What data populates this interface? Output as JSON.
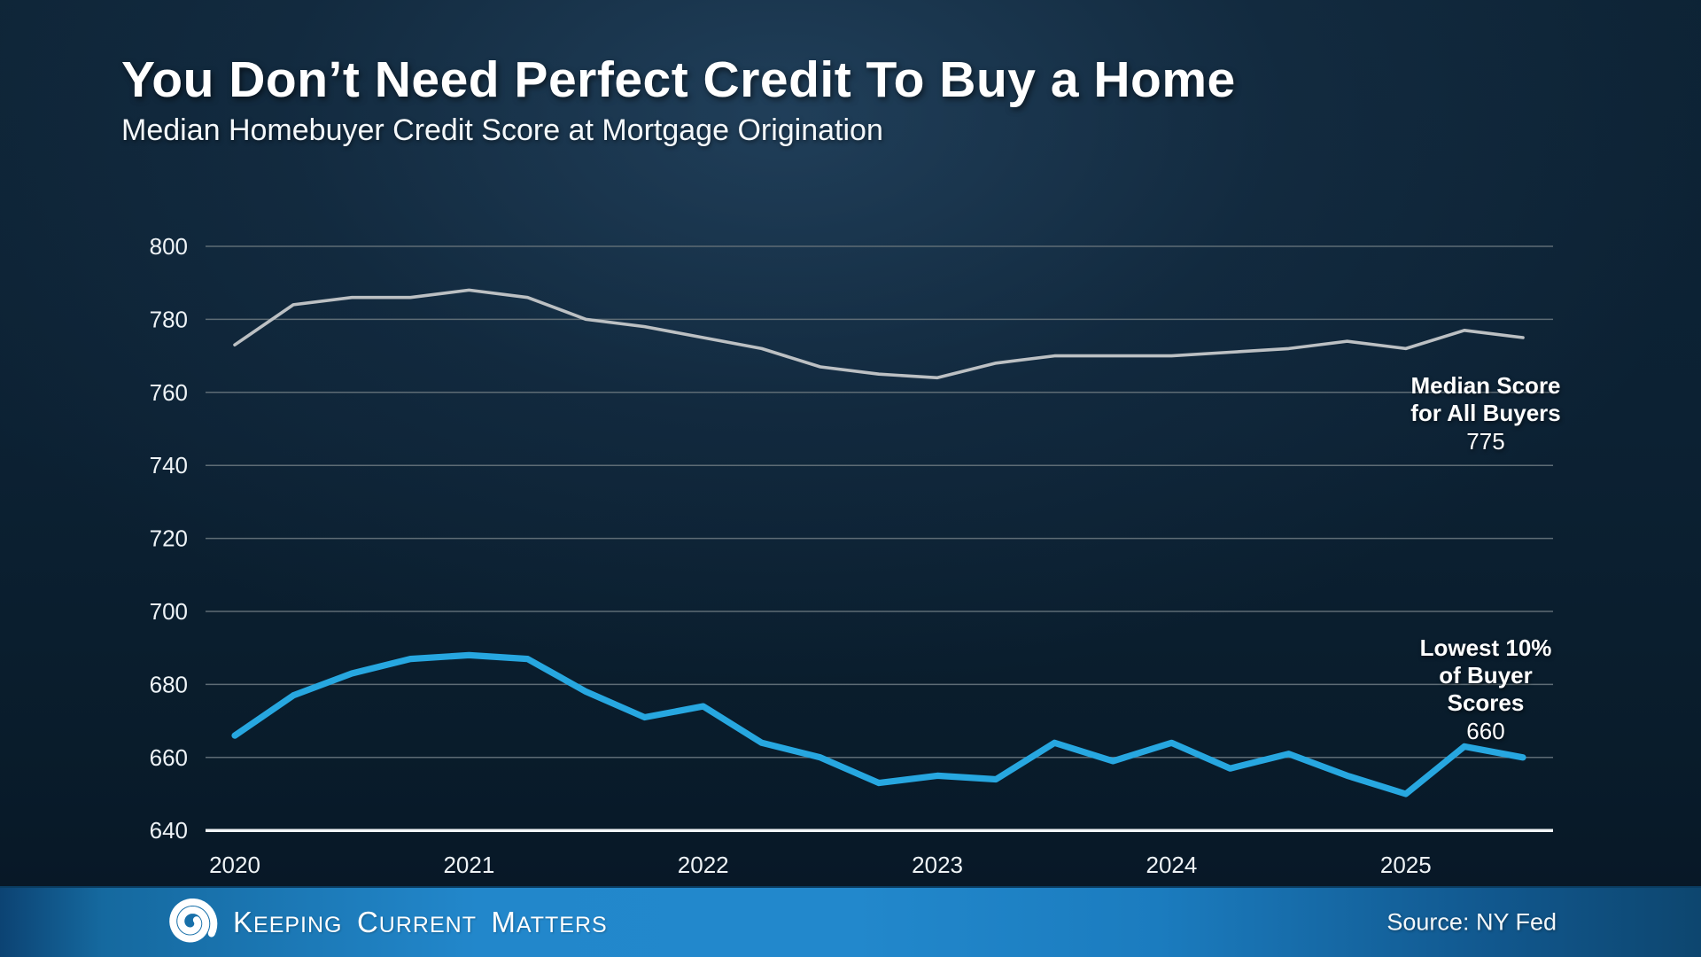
{
  "header": {
    "title": "You Don’t Need Perfect Credit To Buy a Home",
    "subtitle": "Median Homebuyer Credit Score at Mortgage Origination"
  },
  "chart_data": {
    "type": "line",
    "x_start": "2020 Q1",
    "points_per_year": 4,
    "x_labels": [
      "2020",
      "2021",
      "2022",
      "2023",
      "2024",
      "2025"
    ],
    "yticks": [
      800,
      780,
      760,
      740,
      720,
      700,
      680,
      660,
      640
    ],
    "ylim": [
      640,
      800
    ],
    "grid": "horizontal-only",
    "series": [
      {
        "name": "Median Score for All Buyers",
        "color": "#bcc0c3",
        "values": [
          773,
          784,
          786,
          786,
          788,
          786,
          780,
          778,
          775,
          772,
          767,
          765,
          764,
          768,
          770,
          770,
          770,
          771,
          772,
          774,
          772,
          777,
          775
        ]
      },
      {
        "name": "Lowest 10% of Buyer Scores",
        "color": "#27a7e0",
        "values": [
          666,
          677,
          683,
          687,
          688,
          687,
          678,
          671,
          674,
          664,
          660,
          653,
          655,
          654,
          664,
          659,
          664,
          657,
          661,
          655,
          650,
          663,
          660
        ]
      }
    ],
    "annotations": [
      {
        "lines": [
          "Median Score",
          "for All Buyers"
        ],
        "value": "775"
      },
      {
        "lines": [
          "Lowest 10%",
          "of Buyer Scores"
        ],
        "value": "660"
      }
    ]
  },
  "colors": {
    "background": "#0c2133",
    "gridline": "#5e6c75",
    "baseline_axis": "#f0f4f6",
    "all_buyers_line": "#bcc0c3",
    "lowest10_line": "#27a7e0",
    "footer_blue": "#2287cb",
    "text": "#ffffff"
  },
  "footer": {
    "brand": [
      {
        "lead": "K",
        "rest": "EEPING"
      },
      {
        "lead": "C",
        "rest": "URRENT"
      },
      {
        "lead": "M",
        "rest": "ATTERS"
      }
    ],
    "source": "Source: NY Fed"
  }
}
